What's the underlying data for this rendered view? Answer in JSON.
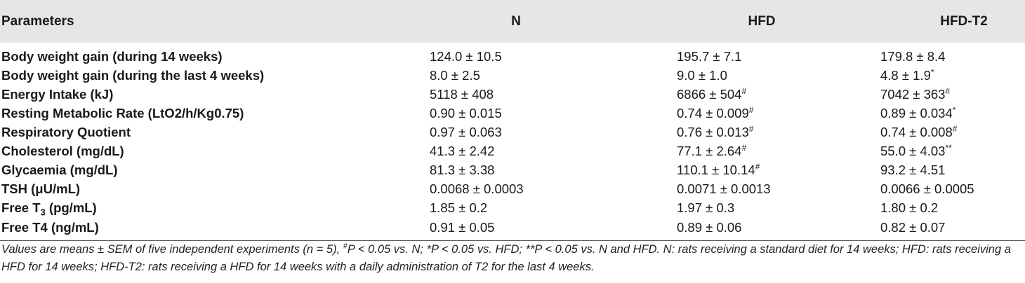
{
  "header": {
    "parameters": "Parameters",
    "n": "N",
    "hfd": "HFD",
    "hfd_t2": "HFD-T2"
  },
  "rows": [
    {
      "param": "Body weight gain (during 14 weeks)",
      "n": "124.0 ± 10.5",
      "n_mark": "",
      "hfd": "195.7 ± 7.1",
      "hfd_mark": "",
      "t2": "179.8 ± 8.4",
      "t2_mark": ""
    },
    {
      "param": "Body weight gain (during the last 4 weeks)",
      "n": "8.0 ± 2.5",
      "n_mark": "",
      "hfd": "9.0 ± 1.0",
      "hfd_mark": "",
      "t2": "4.8 ± 1.9",
      "t2_mark": "*"
    },
    {
      "param": "Energy Intake (kJ)",
      "n": "5118 ± 408",
      "n_mark": "",
      "hfd": "6866 ± 504",
      "hfd_mark": "#",
      "t2": "7042 ± 363",
      "t2_mark": "#"
    },
    {
      "param": "Resting Metabolic Rate (LtO2/h/Kg0.75)",
      "n": "0.90 ± 0.015",
      "n_mark": "",
      "hfd": "0.74 ± 0.009",
      "hfd_mark": "#",
      "t2": "0.89 ± 0.034",
      "t2_mark": "*"
    },
    {
      "param": "Respiratory Quotient",
      "n": "0.97 ± 0.063",
      "n_mark": "",
      "hfd": "0.76 ± 0.013",
      "hfd_mark": "#",
      "t2": "0.74 ± 0.008",
      "t2_mark": "#"
    },
    {
      "param": "Cholesterol (mg/dL)",
      "n": "41.3 ± 2.42",
      "n_mark": "",
      "hfd": "77.1 ± 2.64",
      "hfd_mark": "#",
      "t2": "55.0 ± 4.03",
      "t2_mark": "**"
    },
    {
      "param": "Glycaemia (mg/dL)",
      "n": "81.3 ± 3.38",
      "n_mark": "",
      "hfd": "110.1 ± 10.14",
      "hfd_mark": "#",
      "t2": "93.2 ± 4.51",
      "t2_mark": ""
    },
    {
      "param": "TSH (μU/mL)",
      "n": "0.0068 ± 0.0003",
      "n_mark": "",
      "hfd": "0.0071 ± 0.0013",
      "hfd_mark": "",
      "t2": "0.0066 ± 0.0005",
      "t2_mark": ""
    },
    {
      "param_prefix": "Free T",
      "param_sub": "3",
      "param_suffix": " (pg/mL)",
      "n": "1.85 ± 0.2",
      "n_mark": "",
      "hfd": "1.97 ± 0.3",
      "hfd_mark": "",
      "t2": "1.80 ± 0.2",
      "t2_mark": ""
    },
    {
      "param": "Free T4 (ng/mL)",
      "n": "0.91 ± 0.05",
      "n_mark": "",
      "hfd": "0.89 ± 0.06",
      "hfd_mark": "",
      "t2": "0.82 ± 0.07",
      "t2_mark": ""
    }
  ],
  "footnote": {
    "part1": "Values are means ± SEM of five independent experiments (n = 5), ",
    "mark1": "#",
    "part2": "P < 0.05 vs. N; *P < 0.05 vs. HFD; **P < 0.05 vs. N and HFD. N: rats receiving a standard diet for 14 weeks; HFD: rats receiving a HFD for 14 weeks; HFD-T2: rats receiving a HFD for 14 weeks with a daily administration of T2 for the last 4 weeks."
  }
}
